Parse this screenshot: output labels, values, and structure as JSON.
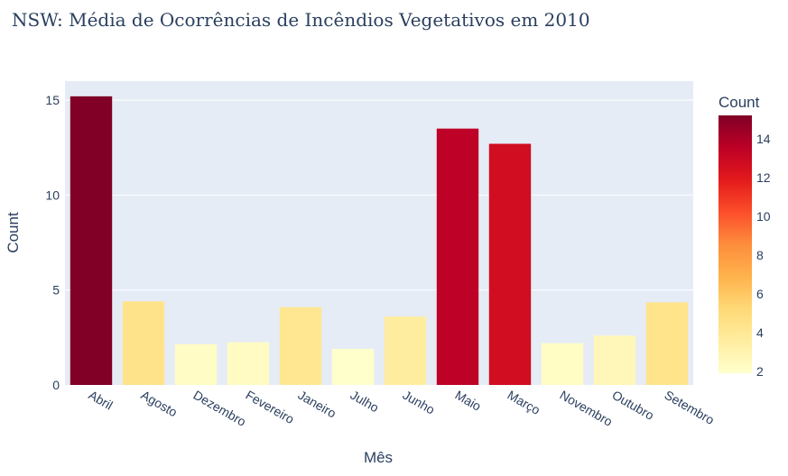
{
  "chart_data": {
    "type": "bar",
    "title": "NSW: Média de Ocorrências de Incêndios Vegetativos em 2010",
    "xlabel": "Mês",
    "ylabel": "Count",
    "categories": [
      "Abril",
      "Agosto",
      "Dezembro",
      "Fevereiro",
      "Janeiro",
      "Julho",
      "Junho",
      "Maio",
      "Março",
      "Novembro",
      "Outubro",
      "Setembro"
    ],
    "values": [
      15.2,
      4.4,
      2.15,
      2.25,
      4.1,
      1.9,
      3.6,
      13.5,
      12.7,
      2.2,
      2.6,
      4.35
    ],
    "ylim": [
      0,
      16
    ],
    "yticks": [
      0,
      5,
      10,
      15
    ],
    "grid": true,
    "colorscale": [
      "#ffffcc",
      "#ffeda0",
      "#fed976",
      "#feb24c",
      "#fd8d3c",
      "#fc4e2a",
      "#e31a1c",
      "#bd0026",
      "#800026"
    ],
    "colorbar": {
      "title": "Count",
      "range": [
        1.9,
        15.2
      ],
      "ticks": [
        2,
        4,
        6,
        8,
        10,
        12,
        14
      ]
    },
    "plot_background": "#e5ecf6"
  }
}
